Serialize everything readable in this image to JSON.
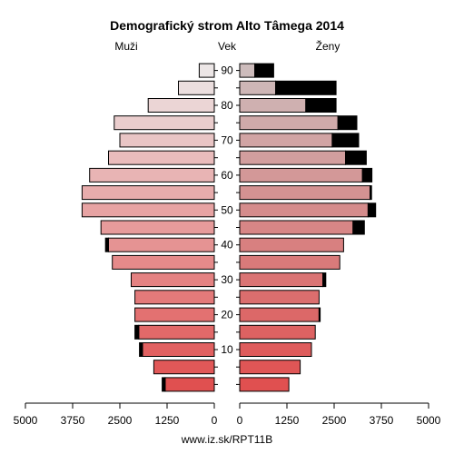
{
  "chart_data": {
    "type": "bar",
    "title": "Demografický strom Alto Tâmega 2014",
    "left_label": "Muži",
    "center_label": "Vek",
    "right_label": "Ženy",
    "age_ticks": [
      "90",
      "80",
      "70",
      "60",
      "50",
      "40",
      "30",
      "20",
      "10"
    ],
    "x_ticks_left": [
      "5000",
      "3750",
      "2500",
      "1250",
      "0"
    ],
    "x_ticks_right": [
      "0",
      "1250",
      "2500",
      "3750",
      "5000"
    ],
    "xlim": [
      0,
      5000
    ],
    "age_groups": [
      "0-4",
      "5-9",
      "10-14",
      "15-19",
      "20-24",
      "25-29",
      "30-34",
      "35-39",
      "40-44",
      "45-49",
      "50-54",
      "55-59",
      "60-64",
      "65-69",
      "70-74",
      "75-79",
      "80-84",
      "85-89",
      "90+"
    ],
    "series": [
      {
        "name": "Muži",
        "values": [
          1300,
          1600,
          1900,
          2000,
          2100,
          2100,
          2200,
          2700,
          2800,
          3000,
          3500,
          3500,
          3300,
          2800,
          2500,
          2650,
          1750,
          950,
          400
        ],
        "excess": [
          80,
          0,
          80,
          100,
          0,
          0,
          0,
          0,
          80,
          0,
          0,
          0,
          0,
          0,
          0,
          0,
          0,
          0,
          0
        ]
      },
      {
        "name": "Ženy",
        "values": [
          1300,
          1600,
          1900,
          2000,
          2100,
          2100,
          2200,
          2650,
          2750,
          3000,
          3400,
          3450,
          3250,
          2800,
          2450,
          2600,
          1750,
          950,
          400
        ],
        "excess": [
          0,
          0,
          0,
          0,
          30,
          0,
          80,
          0,
          0,
          300,
          200,
          40,
          250,
          550,
          700,
          500,
          800,
          1600,
          500
        ]
      }
    ]
  },
  "footer": "www.iz.sk/RPT11B",
  "colors": {
    "male_top": "#ece6e6",
    "male_bottom": "#e05050",
    "female_top": "#cdbcbc",
    "female_bottom": "#e05050",
    "excess": "#000000"
  }
}
